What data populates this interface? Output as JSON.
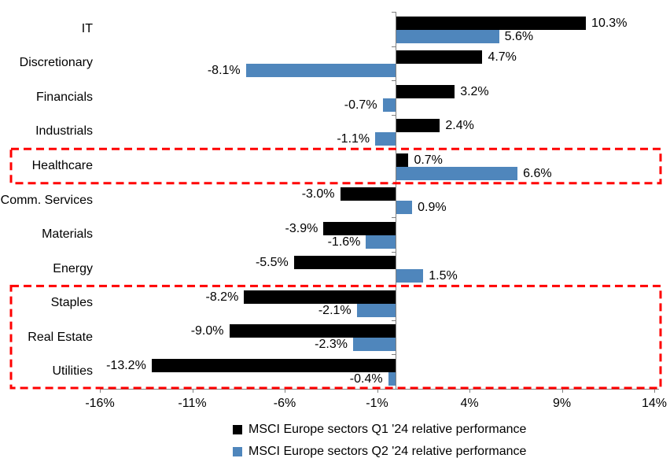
{
  "chart_data": {
    "type": "bar",
    "orientation": "horizontal",
    "title": "",
    "categories": [
      "IT",
      "Discretionary",
      "Financials",
      "Industrials",
      "Healthcare",
      "Comm. Services",
      "Materials",
      "Energy",
      "Staples",
      "Real Estate",
      "Utilities"
    ],
    "series": [
      {
        "name": "MSCI Europe sectors Q1 '24 relative performance",
        "color": "#000000",
        "values": [
          10.3,
          4.7,
          3.2,
          2.4,
          0.7,
          -3.0,
          -3.9,
          -5.5,
          -8.2,
          -9.0,
          -13.2
        ],
        "labels": [
          "10.3%",
          "4.7%",
          "3.2%",
          "2.4%",
          "0.7%",
          "-3.0%",
          "-3.9%",
          "-5.5%",
          "-8.2%",
          "-9.0%",
          "-13.2%"
        ]
      },
      {
        "name": "MSCI Europe sectors Q2 '24 relative performance",
        "color": "#4F86BC",
        "values": [
          5.6,
          -8.1,
          -0.7,
          -1.1,
          6.6,
          0.9,
          -1.6,
          1.5,
          -2.1,
          -2.3,
          -0.4
        ],
        "labels": [
          "5.6%",
          "-8.1%",
          "-0.7%",
          "-1.1%",
          "6.6%",
          "0.9%",
          "-1.6%",
          "1.5%",
          "-2.1%",
          "-2.3%",
          "-0.4%"
        ]
      }
    ],
    "x_axis": {
      "ticks": [
        -16,
        -11,
        -6,
        -1,
        4,
        9,
        14
      ],
      "tick_labels": [
        "-16%",
        "-11%",
        "-6%",
        "-1%",
        "4%",
        "9%",
        "14%"
      ],
      "min": -16,
      "max": 14.2
    },
    "grid": false,
    "legend_position": "bottom",
    "axis_color": "#808080",
    "highlight_color": "#FF0000",
    "highlights": [
      {
        "from": "Healthcare",
        "to": "Healthcare"
      },
      {
        "from": "Staples",
        "to": "Utilities"
      }
    ]
  }
}
